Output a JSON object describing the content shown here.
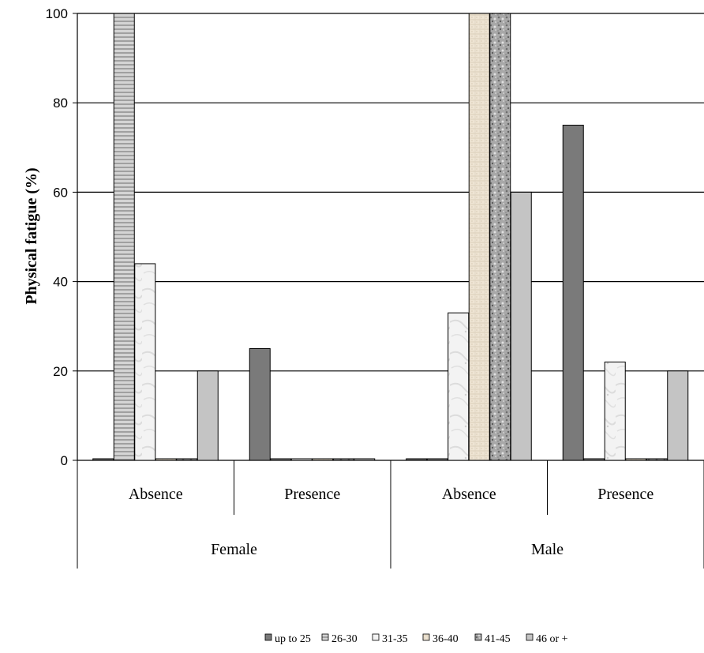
{
  "chart_data": {
    "type": "bar",
    "ylabel": "Physical fatigue (%)",
    "xlabel": "",
    "ylim": [
      0,
      100
    ],
    "yticks": [
      0,
      20,
      40,
      60,
      80,
      100
    ],
    "grid": true,
    "legend_position": "bottom",
    "groups": [
      {
        "label": "Female",
        "subgroups": [
          "Absence",
          "Presence"
        ]
      },
      {
        "label": "Male",
        "subgroups": [
          "Absence",
          "Presence"
        ]
      }
    ],
    "categories": [
      "Female / Absence",
      "Female / Presence",
      "Male / Absence",
      "Male / Presence"
    ],
    "series": [
      {
        "name": "up to 25",
        "values": [
          0,
          25,
          0,
          75
        ],
        "color": "#7a7a7a",
        "pattern": "solid-dark"
      },
      {
        "name": "26-30",
        "values": [
          100,
          0,
          0,
          0
        ],
        "color": "#bdbdbd",
        "pattern": "horizontal-lines"
      },
      {
        "name": "31-35",
        "values": [
          44,
          0,
          33,
          22
        ],
        "color": "#f0f0f0",
        "pattern": "marble-light"
      },
      {
        "name": "36-40",
        "values": [
          0,
          0,
          100,
          0
        ],
        "color": "#e6dccb",
        "pattern": "beige-texture"
      },
      {
        "name": "41-45",
        "values": [
          0,
          0,
          100,
          0
        ],
        "color": "#9e9e9e",
        "pattern": "granite"
      },
      {
        "name": "46 or +",
        "values": [
          20,
          0,
          60,
          20
        ],
        "color": "#c4c4c4",
        "pattern": "solid-light"
      }
    ]
  }
}
